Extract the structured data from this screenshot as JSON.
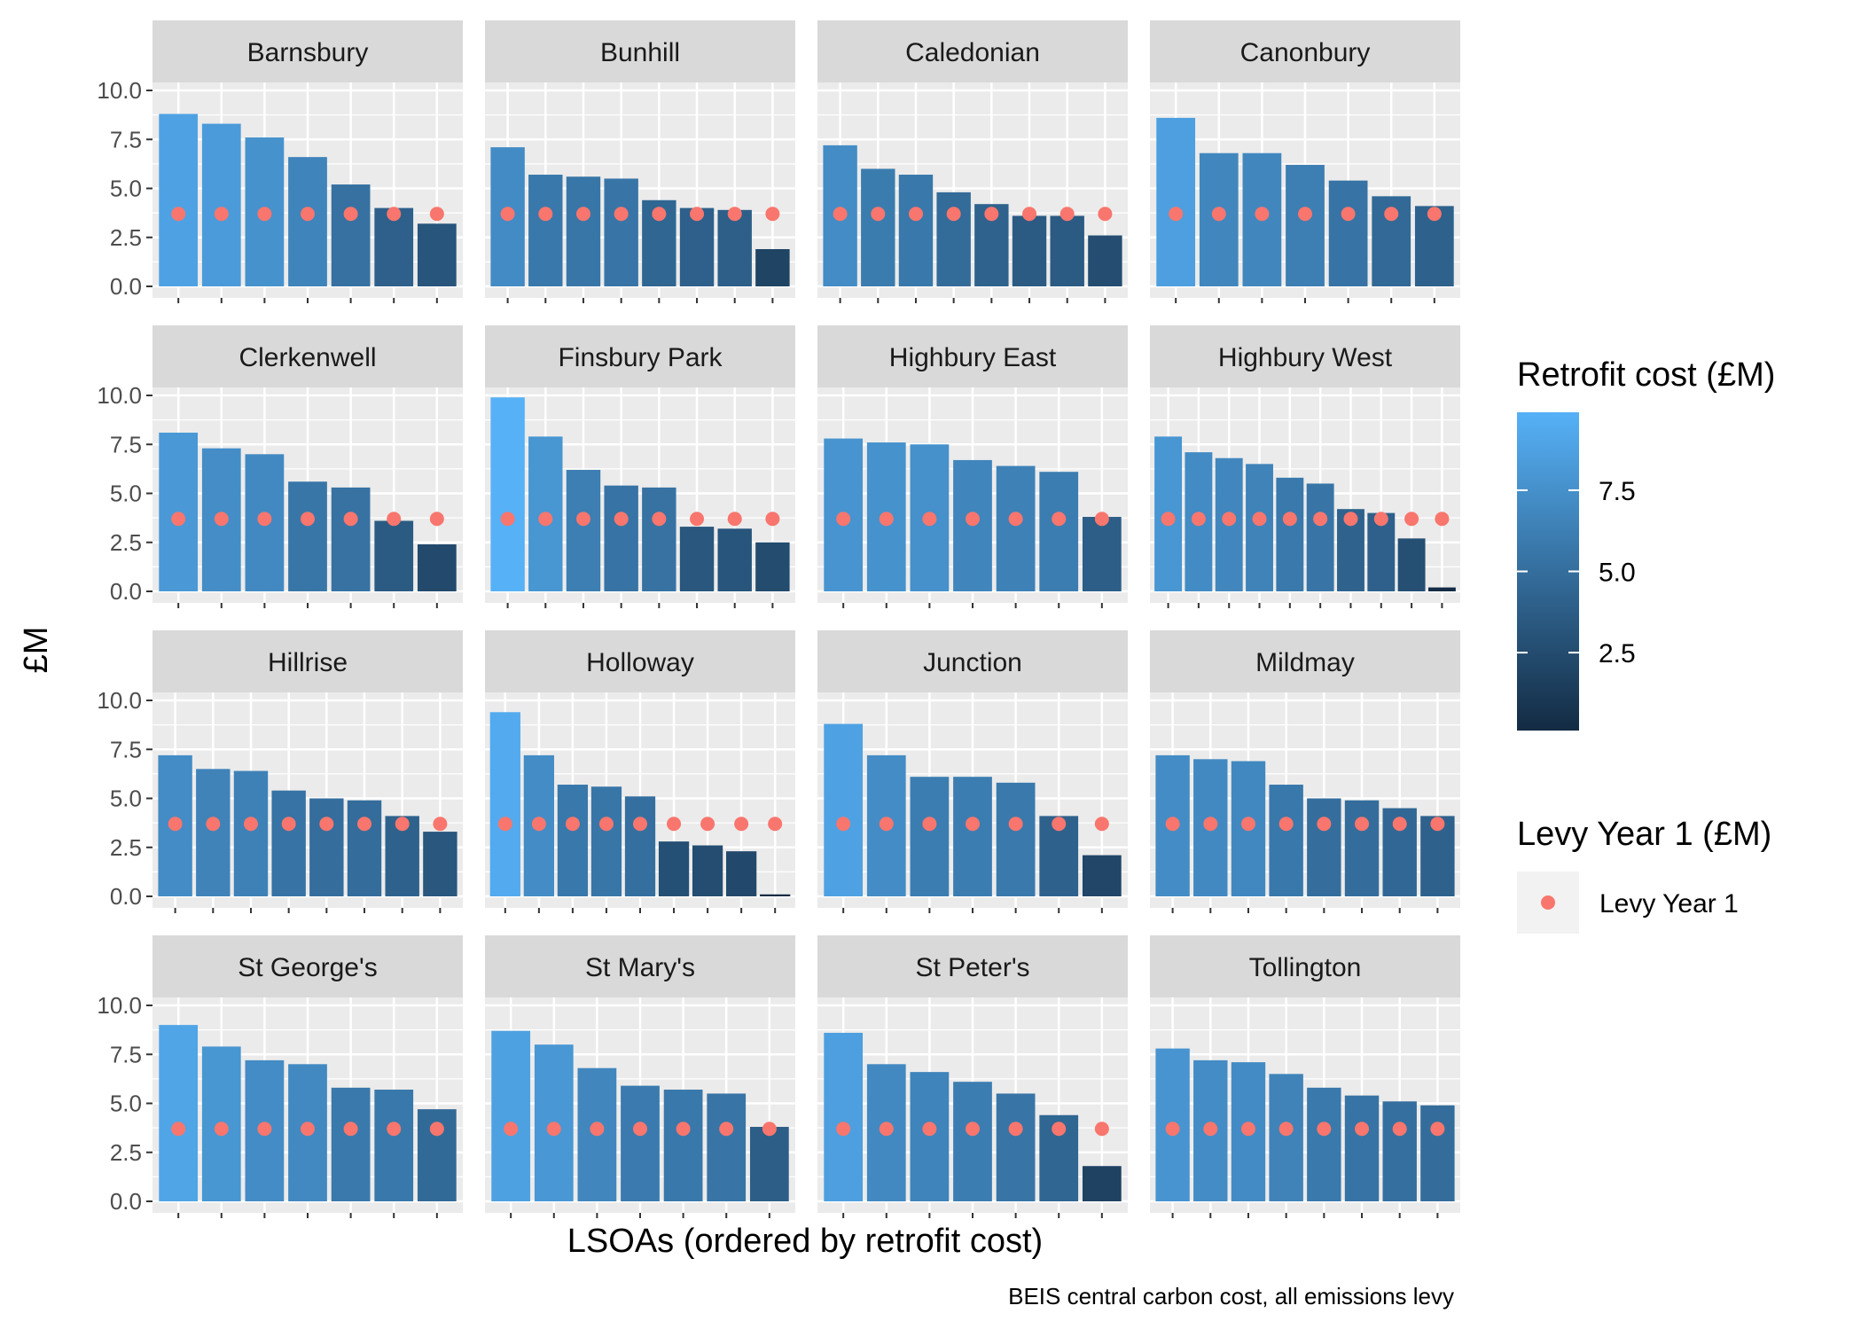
{
  "chart_data": {
    "type": "bar",
    "facet_type": "bar + point (faceted)",
    "ylabel": "£M",
    "xlabel": "LSOAs (ordered by retrofit cost)",
    "caption": "BEIS central carbon cost, all emissions levy",
    "ylim": [
      0,
      10
    ],
    "y_ticks": [
      "0.0",
      "2.5",
      "5.0",
      "7.5",
      "10.0"
    ],
    "y_tick_values": [
      0,
      2.5,
      5,
      7.5,
      10
    ],
    "levy_value": 3.7,
    "colors": {
      "panel_bg": "#ebebeb",
      "strip_bg": "#d9d9d9",
      "grid": "#ffffff",
      "point": "#f8766d",
      "bar_low": "#132b43",
      "bar_high": "#56b1f7"
    },
    "fill_legend": {
      "title": "Retrofit cost (£M)",
      "ticks": [
        "7.5",
        "5.0",
        "2.5"
      ],
      "tick_values": [
        7.5,
        5.0,
        2.5
      ],
      "min": 0.1,
      "max": 9.9
    },
    "point_legend": {
      "title": "Levy Year 1 (£M)",
      "label": "Levy Year 1"
    },
    "facets": [
      {
        "name": "Barnsbury",
        "values": [
          8.8,
          8.3,
          7.6,
          6.6,
          5.2,
          4.0,
          3.2
        ]
      },
      {
        "name": "Bunhill",
        "values": [
          7.1,
          5.7,
          5.6,
          5.5,
          4.4,
          4.0,
          3.9,
          1.9
        ]
      },
      {
        "name": "Caledonian",
        "values": [
          7.2,
          6.0,
          5.7,
          4.8,
          4.2,
          3.6,
          3.6,
          2.6
        ]
      },
      {
        "name": "Canonbury",
        "values": [
          8.6,
          6.8,
          6.8,
          6.2,
          5.4,
          4.6,
          4.1
        ]
      },
      {
        "name": "Clerkenwell",
        "values": [
          8.1,
          7.3,
          7.0,
          5.6,
          5.3,
          3.6,
          2.4
        ]
      },
      {
        "name": "Finsbury Park",
        "values": [
          9.9,
          7.9,
          6.2,
          5.4,
          5.3,
          3.3,
          3.2,
          2.5
        ]
      },
      {
        "name": "Highbury East",
        "values": [
          7.8,
          7.6,
          7.5,
          6.7,
          6.4,
          6.1,
          3.8
        ]
      },
      {
        "name": "Highbury West",
        "values": [
          7.9,
          7.1,
          6.8,
          6.5,
          5.8,
          5.5,
          4.2,
          4.0,
          2.7,
          0.2
        ]
      },
      {
        "name": "Hillrise",
        "values": [
          7.2,
          6.5,
          6.4,
          5.4,
          5.0,
          4.9,
          4.1,
          3.3
        ]
      },
      {
        "name": "Holloway",
        "values": [
          9.4,
          7.2,
          5.7,
          5.6,
          5.1,
          2.8,
          2.6,
          2.3,
          0.1
        ]
      },
      {
        "name": "Junction",
        "values": [
          8.8,
          7.2,
          6.1,
          6.1,
          5.8,
          4.1,
          2.1
        ]
      },
      {
        "name": "Mildmay",
        "values": [
          7.2,
          7.0,
          6.9,
          5.7,
          5.0,
          4.9,
          4.5,
          4.1
        ]
      },
      {
        "name": "St George's",
        "values": [
          9.0,
          7.9,
          7.2,
          7.0,
          5.8,
          5.7,
          4.7
        ]
      },
      {
        "name": "St Mary's",
        "values": [
          8.7,
          8.0,
          6.8,
          5.9,
          5.7,
          5.5,
          3.8
        ]
      },
      {
        "name": "St Peter's",
        "values": [
          8.6,
          7.0,
          6.6,
          6.1,
          5.5,
          4.4,
          1.8
        ]
      },
      {
        "name": "Tollington",
        "values": [
          7.8,
          7.2,
          7.1,
          6.5,
          5.8,
          5.4,
          5.1,
          4.9
        ]
      }
    ]
  }
}
